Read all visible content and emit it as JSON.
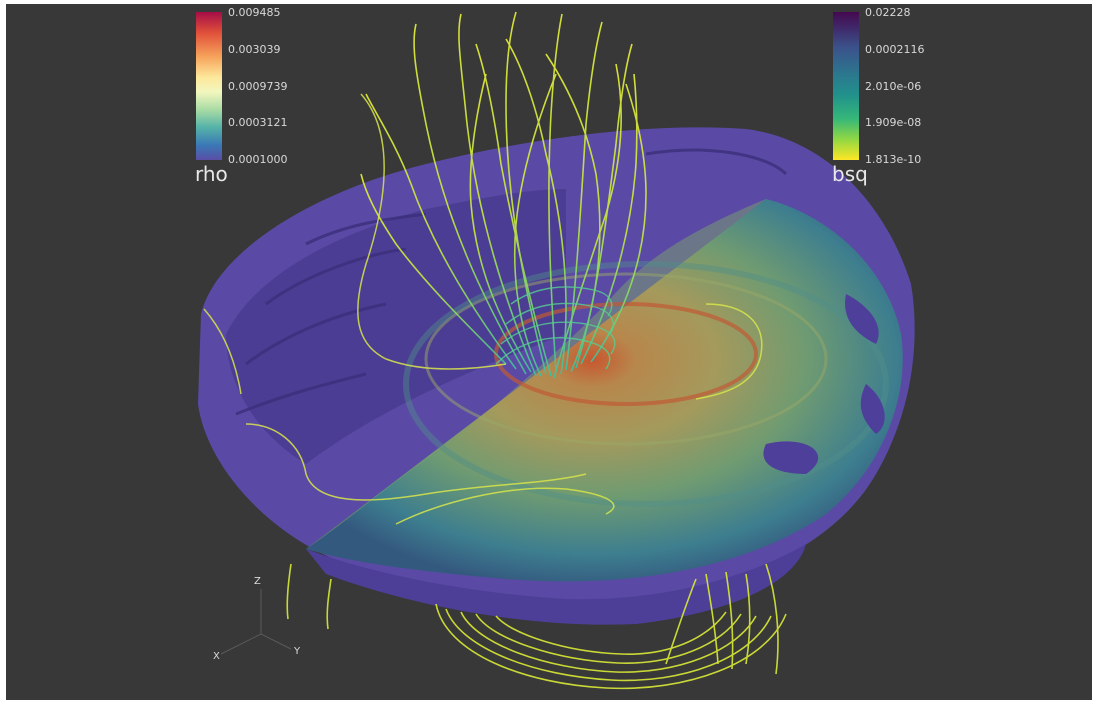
{
  "colorbars": {
    "rho": {
      "title": "rho",
      "ticks": [
        "0.009485",
        "0.003039",
        "0.0009739",
        "0.0003121",
        "0.0001000"
      ]
    },
    "bsq": {
      "title": "bsq",
      "ticks": [
        "0.02228",
        "0.0002116",
        "2.010e-06",
        "1.909e-08",
        "1.813e-10"
      ]
    }
  },
  "axes": {
    "z": "Z",
    "x": "X",
    "y": "Y"
  },
  "colors": {
    "background": "#383838",
    "disk_purple": "#5a4aa6",
    "field_lines": "#e2ef3c",
    "field_lines_core": "#5fd38a",
    "hot_core": "#d0563a"
  }
}
